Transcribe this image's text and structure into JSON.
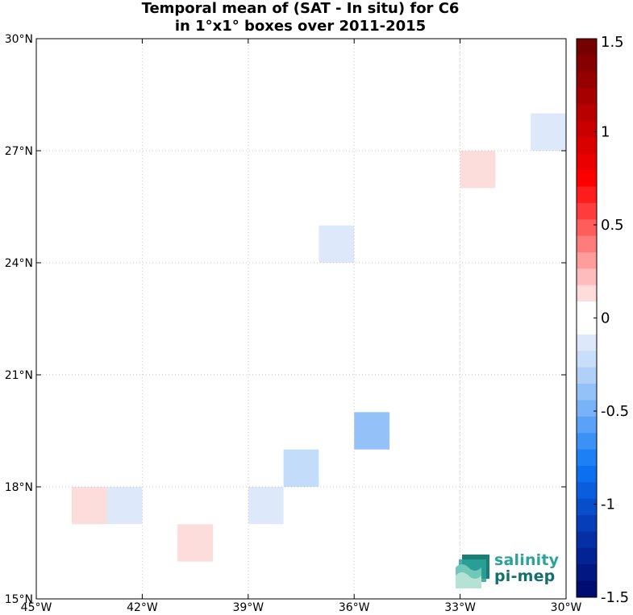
{
  "title": {
    "line1": "Temporal mean of (SAT - In situ) for C6",
    "line2": "in 1°x1° boxes over 2011-2015"
  },
  "logo": {
    "line1": "salinity",
    "line2": "pi-mep"
  },
  "chart_data": {
    "type": "heatmap",
    "title": "Temporal mean of (SAT - In situ) for C6 in 1°x1° boxes over 2011-2015",
    "xlim": [
      -45,
      -30
    ],
    "ylim": [
      15,
      30
    ],
    "x_ticks": [
      {
        "value": -45,
        "label": "45°W"
      },
      {
        "value": -42,
        "label": "42°W"
      },
      {
        "value": -39,
        "label": "39°W"
      },
      {
        "value": -36,
        "label": "36°W"
      },
      {
        "value": -33,
        "label": "33°W"
      },
      {
        "value": -30,
        "label": "30°W"
      }
    ],
    "y_ticks": [
      {
        "value": 15,
        "label": "15°N"
      },
      {
        "value": 18,
        "label": "18°N"
      },
      {
        "value": 21,
        "label": "21°N"
      },
      {
        "value": 24,
        "label": "24°N"
      },
      {
        "value": 27,
        "label": "27°N"
      },
      {
        "value": 30,
        "label": "30°N"
      }
    ],
    "grid": true,
    "cells": [
      {
        "lon_min": -44,
        "lat_min": 17,
        "value": 0.15,
        "color": "#fddcdc"
      },
      {
        "lon_min": -43,
        "lat_min": 17,
        "value": -0.15,
        "color": "#dde9fb"
      },
      {
        "lon_min": -41,
        "lat_min": 16,
        "value": 0.15,
        "color": "#fddcdc"
      },
      {
        "lon_min": -39,
        "lat_min": 17,
        "value": -0.15,
        "color": "#dde9fb"
      },
      {
        "lon_min": -38,
        "lat_min": 18,
        "value": -0.25,
        "color": "#c3dcf9"
      },
      {
        "lon_min": -36,
        "lat_min": 19,
        "value": -0.4,
        "color": "#94c1f7"
      },
      {
        "lon_min": -37,
        "lat_min": 24,
        "value": -0.15,
        "color": "#dde9fb"
      },
      {
        "lon_min": -33,
        "lat_min": 26,
        "value": 0.15,
        "color": "#fddcdc"
      },
      {
        "lon_min": -31,
        "lat_min": 27,
        "value": -0.15,
        "color": "#dde9fb"
      }
    ],
    "colorbar": {
      "range": [
        -1.5,
        1.5
      ],
      "ticks": [
        {
          "value": 1.5,
          "label": "1.5"
        },
        {
          "value": 1,
          "label": "1"
        },
        {
          "value": 0.5,
          "label": "0.5"
        },
        {
          "value": 0,
          "label": "0"
        },
        {
          "value": -0.5,
          "label": "-0.5"
        },
        {
          "value": -1,
          "label": "-1"
        },
        {
          "value": -1.5,
          "label": "-1.5"
        }
      ],
      "colors_top_to_bottom": [
        "#750000",
        "#850000",
        "#960000",
        "#a70000",
        "#b80000",
        "#c90000",
        "#da0000",
        "#eb0000",
        "#fc0000",
        "#ff1c1c",
        "#ff3c3c",
        "#ff5c5c",
        "#ff7c7c",
        "#ff9c9c",
        "#ffbcbc",
        "#ffdcdc",
        "#ffffff",
        "#ffffff",
        "#dde9fb",
        "#c8def9",
        "#b0d0f8",
        "#94c1f7",
        "#78b2f7",
        "#5aa2f7",
        "#3c91f7",
        "#1e80f5",
        "#0c6ff0",
        "#0a5ede",
        "#084ecb",
        "#063eb8",
        "#042fa5",
        "#032293",
        "#021781",
        "#010c70"
      ]
    }
  }
}
